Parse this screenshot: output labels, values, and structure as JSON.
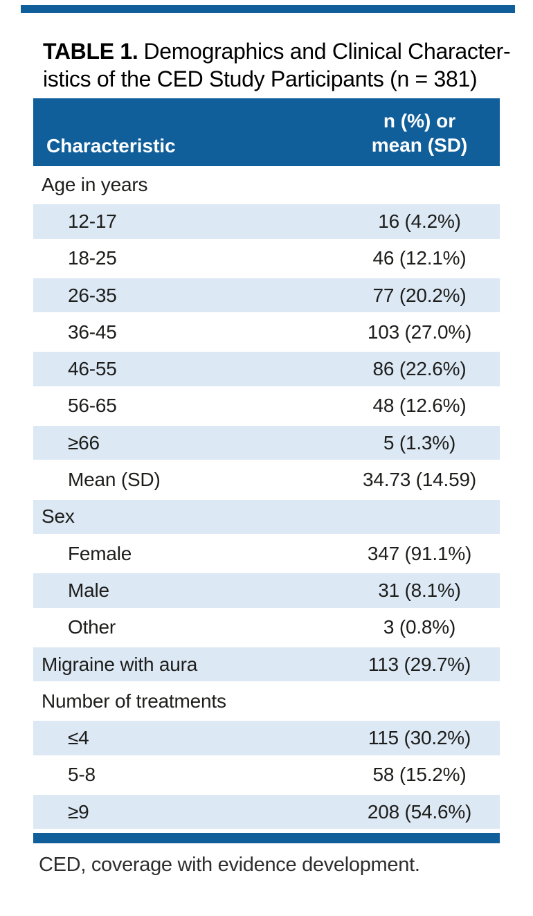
{
  "colors": {
    "header_blue": "#105f9a",
    "row_blue": "#dce8f4",
    "text": "#1d1d1b"
  },
  "caption": {
    "label": "TABLE 1.",
    "line1_rest": "Demographics and Clinical Character-",
    "line2": "istics of the CED Study Participants (n = 381)"
  },
  "header": {
    "characteristic": "Characteristic",
    "value_line1": "n (%) or",
    "value_line2": "mean (SD)"
  },
  "rows": [
    {
      "label": "Age in years",
      "value": "",
      "indent": false
    },
    {
      "label": "12-17",
      "value": "16 (4.2%)",
      "indent": true
    },
    {
      "label": "18-25",
      "value": "46 (12.1%)",
      "indent": true
    },
    {
      "label": "26-35",
      "value": "77 (20.2%)",
      "indent": true
    },
    {
      "label": "36-45",
      "value": "103 (27.0%)",
      "indent": true
    },
    {
      "label": "46-55",
      "value": "86 (22.6%)",
      "indent": true
    },
    {
      "label": "56-65",
      "value": "48 (12.6%)",
      "indent": true
    },
    {
      "label": "≥66",
      "value": "5 (1.3%)",
      "indent": true
    },
    {
      "label": "Mean (SD)",
      "value": "34.73 (14.59)",
      "indent": true
    },
    {
      "label": "Sex",
      "value": "",
      "indent": false
    },
    {
      "label": "Female",
      "value": "347 (91.1%)",
      "indent": true
    },
    {
      "label": "Male",
      "value": "31 (8.1%)",
      "indent": true
    },
    {
      "label": "Other",
      "value": "3 (0.8%)",
      "indent": true
    },
    {
      "label": "Migraine with aura",
      "value": "113 (29.7%)",
      "indent": false
    },
    {
      "label": "Number of treatments",
      "value": "",
      "indent": false
    },
    {
      "label": "≤4",
      "value": "115 (30.2%)",
      "indent": true
    },
    {
      "label": "5-8",
      "value": "58 (15.2%)",
      "indent": true
    },
    {
      "label": "≥9",
      "value": "208 (54.6%)",
      "indent": true
    }
  ],
  "footnote": "CED, coverage with evidence development."
}
